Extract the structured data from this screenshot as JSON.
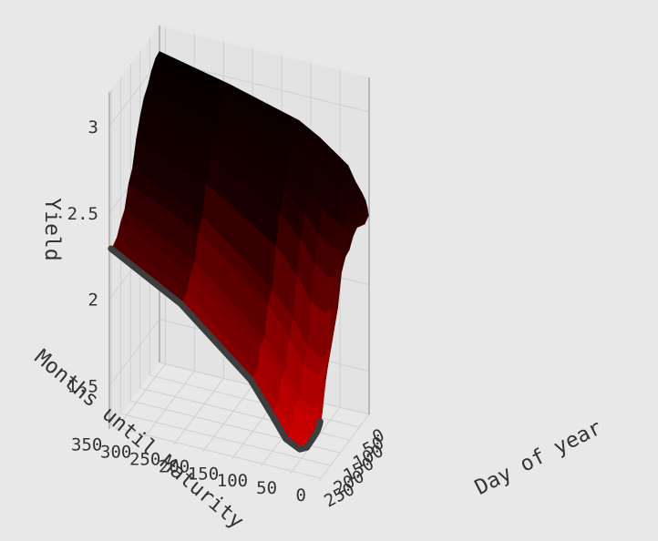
{
  "chart_data": {
    "type": "surface",
    "title": "",
    "xlabel": "Day of year",
    "ylabel": "Months until Maturity",
    "zlabel": "Yield",
    "x_ticks": [
      "0",
      "50",
      "100",
      "150",
      "200",
      "250"
    ],
    "y_ticks": [
      "0",
      "50",
      "100",
      "150",
      "200",
      "250",
      "300",
      "350"
    ],
    "z_ticks": [
      "1.5",
      "2",
      "2.5",
      "3"
    ],
    "x_range": [
      0,
      260
    ],
    "y_range": [
      0,
      360
    ],
    "z_range": [
      1.25,
      3.2
    ],
    "maturities_months": [
      1,
      2,
      3,
      6,
      12,
      24,
      36,
      60,
      84,
      120,
      240,
      360
    ],
    "days": [
      0,
      20,
      40,
      60,
      80,
      100,
      120,
      140,
      160,
      180,
      200,
      220,
      240,
      251
    ],
    "yields": [
      [
        2.4,
        2.42,
        2.44,
        2.48,
        2.52,
        2.58,
        2.66,
        2.72,
        2.78,
        2.85,
        2.96,
        3.05
      ],
      [
        2.38,
        2.4,
        2.42,
        2.45,
        2.48,
        2.54,
        2.62,
        2.69,
        2.76,
        2.84,
        2.95,
        3.04
      ],
      [
        2.4,
        2.42,
        2.43,
        2.45,
        2.47,
        2.52,
        2.58,
        2.64,
        2.7,
        2.78,
        2.9,
        3.0
      ],
      [
        2.42,
        2.43,
        2.44,
        2.45,
        2.45,
        2.4,
        2.42,
        2.48,
        2.56,
        2.66,
        2.82,
        2.94
      ],
      [
        2.4,
        2.41,
        2.42,
        2.42,
        2.38,
        2.3,
        2.3,
        2.36,
        2.46,
        2.57,
        2.76,
        2.9
      ],
      [
        2.35,
        2.36,
        2.37,
        2.36,
        2.32,
        2.18,
        2.16,
        2.22,
        2.34,
        2.46,
        2.68,
        2.82
      ],
      [
        2.34,
        2.34,
        2.33,
        2.3,
        2.22,
        2.02,
        1.98,
        2.03,
        2.16,
        2.3,
        2.56,
        2.72
      ],
      [
        2.28,
        2.28,
        2.25,
        2.18,
        2.05,
        1.8,
        1.75,
        1.8,
        1.94,
        2.08,
        2.4,
        2.58
      ],
      [
        2.1,
        2.1,
        2.08,
        2.02,
        1.92,
        1.72,
        1.68,
        1.72,
        1.86,
        2.02,
        2.34,
        2.52
      ],
      [
        2.0,
        1.99,
        1.96,
        1.9,
        1.8,
        1.58,
        1.52,
        1.56,
        1.7,
        1.86,
        2.2,
        2.4
      ],
      [
        1.94,
        1.92,
        1.88,
        1.8,
        1.7,
        1.54,
        1.5,
        1.54,
        1.68,
        1.84,
        2.16,
        2.36
      ],
      [
        1.8,
        1.78,
        1.74,
        1.68,
        1.6,
        1.46,
        1.4,
        1.44,
        1.56,
        1.72,
        2.08,
        2.3
      ],
      [
        1.62,
        1.6,
        1.58,
        1.55,
        1.5,
        1.42,
        1.4,
        1.44,
        1.56,
        1.72,
        2.06,
        2.28
      ],
      [
        1.58,
        1.56,
        1.55,
        1.52,
        1.48,
        1.41,
        1.39,
        1.43,
        1.55,
        1.72,
        2.06,
        2.28
      ]
    ],
    "colorscale": [
      "#d40000",
      "#7a0000",
      "#1a0000",
      "#050000"
    ],
    "highlight_color": "#3d3d3d",
    "background": "#e8e8e8",
    "grid": true
  }
}
